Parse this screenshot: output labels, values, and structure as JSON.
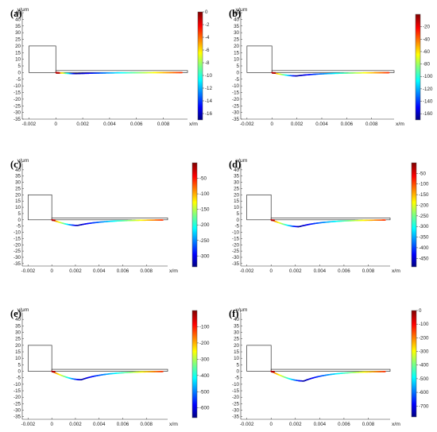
{
  "chart_data": [
    {
      "type": "line",
      "panel_label": "(a)",
      "xlabel": "x/m",
      "ylabel": "y/μm",
      "xlim": [
        -0.0025,
        0.0098
      ],
      "ylim": [
        -35,
        45
      ],
      "x_ticks": [
        "-0.002",
        "0",
        "0.002",
        "0.004",
        "0.006",
        "0.008"
      ],
      "y_ticks": [
        "45",
        "40",
        "35",
        "30",
        "25",
        "20",
        "15",
        "10",
        "5",
        "0",
        "-5",
        "-10",
        "-15",
        "-20",
        "-25",
        "-30",
        "-35"
      ],
      "colorbar": {
        "min": -17,
        "max": 0,
        "ticks": [
          "0",
          "-2",
          "-4",
          "-6",
          "-8",
          "-10",
          "-12",
          "-14",
          "-16"
        ]
      },
      "jet_depth": -0.8,
      "min_x": 0.0015
    },
    {
      "type": "line",
      "panel_label": "(b)",
      "xlabel": "x/m",
      "ylabel": "y/μm",
      "xlim": [
        -0.0025,
        0.0098
      ],
      "ylim": [
        -35,
        45
      ],
      "x_ticks": [
        "-0.002",
        "0",
        "0.002",
        "0.004",
        "0.006",
        "0.008"
      ],
      "y_ticks": [
        "45",
        "40",
        "35",
        "30",
        "25",
        "20",
        "15",
        "10",
        "5",
        "0",
        "-5",
        "-10",
        "-15",
        "-20",
        "-25",
        "-30",
        "-35"
      ],
      "colorbar": {
        "min": -170,
        "max": 0,
        "ticks": [
          "-20",
          "-40",
          "-60",
          "-80",
          "-100",
          "-120",
          "-140",
          "-160"
        ]
      },
      "jet_depth": -2.5,
      "min_x": 0.002
    },
    {
      "type": "line",
      "panel_label": "(c)",
      "xlabel": "x/m",
      "ylabel": "y/μm",
      "xlim": [
        -0.0025,
        0.0098
      ],
      "ylim": [
        -37,
        45
      ],
      "x_ticks": [
        "-0.002",
        "0",
        "0.002",
        "0.004",
        "0.006",
        "0.008"
      ],
      "y_ticks": [
        "40",
        "35",
        "30",
        "25",
        "20",
        "15",
        "10",
        "5",
        "0",
        "-5",
        "-10",
        "-15",
        "-20",
        "-25",
        "-30",
        "-35"
      ],
      "colorbar": {
        "min": -335,
        "max": 0,
        "ticks": [
          "-50",
          "-100",
          "-150",
          "-200",
          "-250",
          "-300"
        ]
      },
      "jet_depth": -4.5,
      "min_x": 0.0022
    },
    {
      "type": "line",
      "panel_label": "(d)",
      "xlabel": "x/m",
      "ylabel": "y/μm",
      "xlim": [
        -0.0025,
        0.0098
      ],
      "ylim": [
        -37,
        45
      ],
      "x_ticks": [
        "-0.002",
        "0",
        "0.002",
        "0.004",
        "0.006",
        "0.008"
      ],
      "y_ticks": [
        "40",
        "35",
        "30",
        "25",
        "20",
        "15",
        "10",
        "5",
        "0",
        "-5",
        "-10",
        "-15",
        "-20",
        "-25",
        "-30",
        "-35"
      ],
      "colorbar": {
        "min": -490,
        "max": 0,
        "ticks": [
          "-50",
          "-100",
          "-150",
          "-200",
          "-250",
          "-300",
          "-350",
          "-400",
          "-450"
        ]
      },
      "jet_depth": -5.5,
      "min_x": 0.0023
    },
    {
      "type": "line",
      "panel_label": "(e)",
      "xlabel": "x/m",
      "ylabel": "y/μm",
      "xlim": [
        -0.0025,
        0.0098
      ],
      "ylim": [
        -37,
        45
      ],
      "x_ticks": [
        "-0.002",
        "0",
        "0.002",
        "0.004",
        "0.006",
        "0.008"
      ],
      "y_ticks": [
        "40",
        "35",
        "30",
        "25",
        "20",
        "15",
        "10",
        "5",
        "0",
        "-5",
        "-10",
        "-15",
        "-20",
        "-25",
        "-30",
        "-35"
      ],
      "colorbar": {
        "min": -660,
        "max": 0,
        "ticks": [
          "-100",
          "-200",
          "-300",
          "-400",
          "-500",
          "-600"
        ]
      },
      "jet_depth": -6.5,
      "min_x": 0.0025
    },
    {
      "type": "line",
      "panel_label": "(f)",
      "xlabel": "x/m",
      "ylabel": "y/μm",
      "xlim": [
        -0.0025,
        0.0098
      ],
      "ylim": [
        -37,
        45
      ],
      "x_ticks": [
        "-0.002",
        "0",
        "0.002",
        "0.004",
        "0.006",
        "0.008"
      ],
      "y_ticks": [
        "40",
        "35",
        "30",
        "25",
        "20",
        "15",
        "10",
        "5",
        "0",
        "-5",
        "-10",
        "-15",
        "-20",
        "-25",
        "-30",
        "-35"
      ],
      "colorbar": {
        "min": -780,
        "max": 0,
        "ticks": [
          "0",
          "-100",
          "-200",
          "-300",
          "-400",
          "-500",
          "-600",
          "-700"
        ]
      },
      "jet_depth": -7.5,
      "min_x": 0.0027
    }
  ],
  "nozzle": {
    "x_start": -0.002,
    "x_end": 0,
    "y_top": 20,
    "y_bottom": 0
  },
  "channel": {
    "x_start": 0,
    "x_end": 0.0098,
    "y_top": 1.5,
    "y_bottom": 0
  }
}
